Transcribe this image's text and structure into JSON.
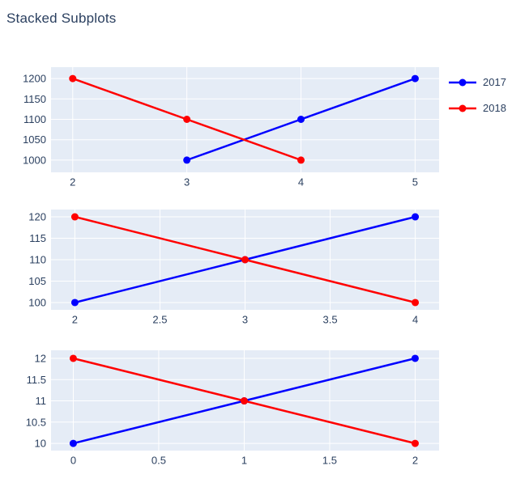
{
  "figure": {
    "title": "Stacked Subplots"
  },
  "colors": {
    "background": "#ffffff",
    "plot_background": "#e5ecf6",
    "gridline": "#ffffff",
    "text": "#2a3f5f",
    "series_2017": "#0000ff",
    "series_2018": "#ff0000"
  },
  "chart_data": [
    {
      "type": "line",
      "subplot": "top",
      "series": [
        {
          "name": "2017",
          "color": "#0000ff",
          "x": [
            3,
            4,
            5
          ],
          "y": [
            1000,
            1100,
            1200
          ]
        },
        {
          "name": "2018",
          "color": "#ff0000",
          "x": [
            2,
            3,
            4
          ],
          "y": [
            1200,
            1100,
            1000
          ]
        }
      ],
      "xticks": [
        2,
        3,
        4,
        5
      ],
      "yticks": [
        1000,
        1050,
        1100,
        1150,
        1200
      ],
      "xlim": [
        1.81,
        5.21
      ],
      "ylim": [
        970,
        1228
      ],
      "grid": true,
      "legend_position": "top-right-outside"
    },
    {
      "type": "line",
      "subplot": "middle",
      "series": [
        {
          "name": "2017",
          "color": "#0000ff",
          "x": [
            2,
            3,
            4
          ],
          "y": [
            100,
            110,
            120
          ]
        },
        {
          "name": "2018",
          "color": "#ff0000",
          "x": [
            2,
            3,
            4
          ],
          "y": [
            120,
            110,
            100
          ]
        }
      ],
      "xticks": [
        2,
        2.5,
        3,
        3.5,
        4
      ],
      "yticks": [
        100,
        105,
        110,
        115,
        120
      ],
      "xlim": [
        1.86,
        4.14
      ],
      "ylim": [
        98.3,
        121.7
      ],
      "grid": true
    },
    {
      "type": "line",
      "subplot": "bottom",
      "series": [
        {
          "name": "2017",
          "color": "#0000ff",
          "x": [
            0,
            1,
            2
          ],
          "y": [
            10,
            11,
            12
          ]
        },
        {
          "name": "2018",
          "color": "#ff0000",
          "x": [
            0,
            1,
            2
          ],
          "y": [
            12,
            11,
            10
          ]
        }
      ],
      "xticks": [
        0,
        0.5,
        1,
        1.5,
        2
      ],
      "yticks": [
        10,
        10.5,
        11,
        11.5,
        12
      ],
      "xlim": [
        -0.13,
        2.14
      ],
      "ylim": [
        9.83,
        12.19
      ],
      "grid": true
    }
  ]
}
